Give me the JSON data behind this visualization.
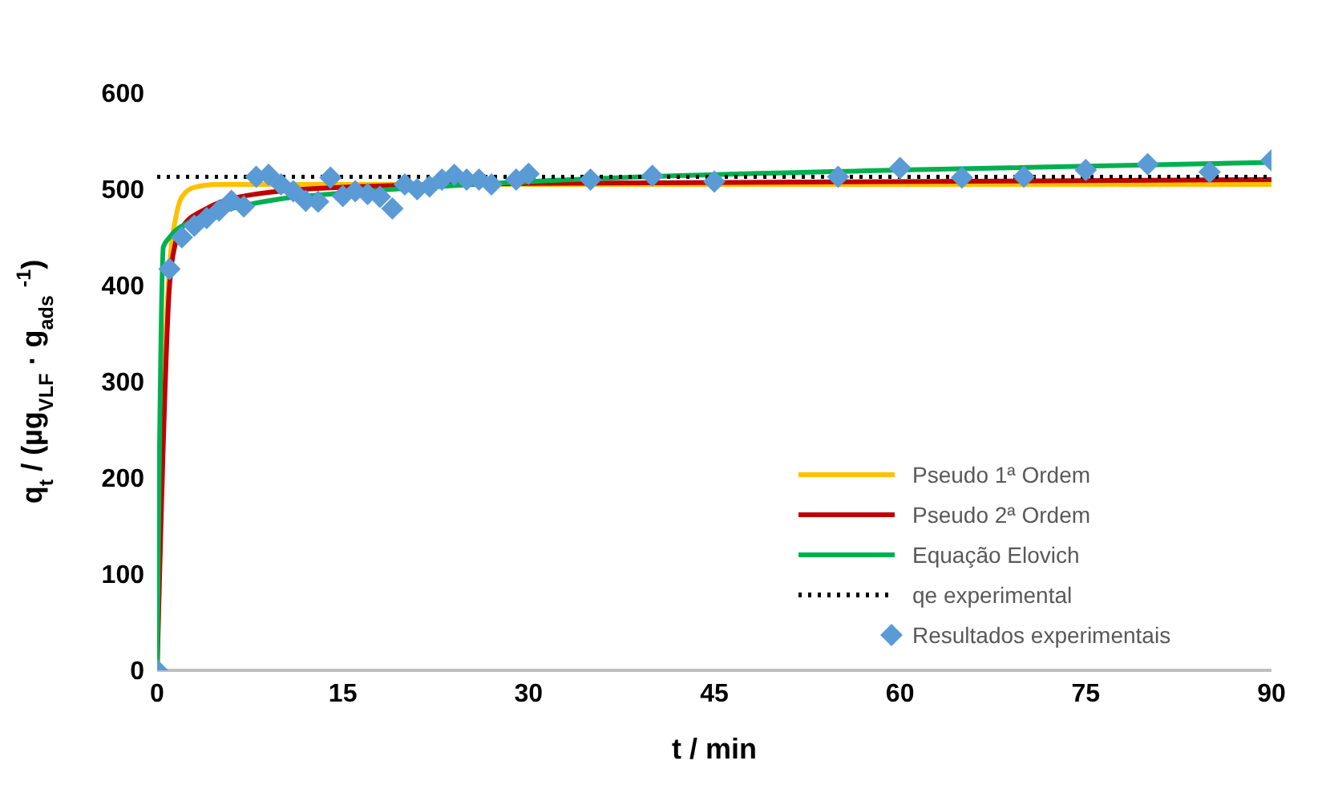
{
  "chart_data": {
    "type": "line",
    "xlabel": "t / min",
    "ylabel": "q$_{t}$ / (µg$_{VLF}$ · g$_{ads}$ $^{-1}$)",
    "xlim": [
      0,
      90
    ],
    "xticks": [
      0,
      15,
      30,
      45,
      60,
      75,
      90
    ],
    "ylim": [
      0,
      600
    ],
    "yticks": [
      0,
      100,
      200,
      300,
      400,
      500,
      600
    ],
    "grid": false,
    "legend": "right",
    "series": [
      {
        "name": "Pseudo 1ª Ordem",
        "color": "#ffc000",
        "line_style": "solid",
        "marker": "none",
        "x": [
          0,
          0.5,
          1,
          1.5,
          2,
          3,
          5,
          90
        ],
        "values": [
          0,
          280,
          420,
          470,
          492,
          502,
          505,
          505
        ]
      },
      {
        "name": "Pseudo 2ª Ordem",
        "color": "#c00000",
        "line_style": "solid",
        "marker": "none",
        "x": [
          0,
          1,
          1.5,
          2,
          4,
          8,
          15,
          30,
          90
        ],
        "values": [
          0,
          400,
          445,
          460,
          480,
          495,
          502,
          506,
          510
        ]
      },
      {
        "name": "Equação Elovich",
        "color": "#00b050",
        "line_style": "solid",
        "marker": "none",
        "x": [
          0,
          0.5,
          1,
          3,
          6,
          10,
          15,
          30,
          60,
          90
        ],
        "values": [
          0,
          440,
          450,
          468,
          480,
          490,
          496,
          508,
          520,
          528
        ]
      },
      {
        "name": "qe experimental",
        "color": "#000000",
        "line_style": "dotted",
        "marker": "none",
        "x": [
          0,
          90
        ],
        "values": [
          513,
          513
        ]
      },
      {
        "name": "Resultados experimentais",
        "type": "scatter",
        "color": "#5b9bd5",
        "marker": "diamond",
        "x": [
          0,
          1,
          2,
          3,
          4,
          5,
          6,
          7,
          8,
          9,
          10,
          11,
          12,
          13,
          14,
          15,
          16,
          17,
          18,
          19,
          20,
          21,
          22,
          23,
          24,
          25,
          26,
          27,
          29,
          30,
          35,
          40,
          45,
          55,
          60,
          65,
          70,
          75,
          80,
          85,
          90
        ],
        "values": [
          0,
          417,
          450,
          462,
          470,
          478,
          488,
          482,
          513,
          515,
          505,
          498,
          488,
          487,
          512,
          493,
          498,
          495,
          492,
          480,
          505,
          500,
          503,
          510,
          515,
          510,
          510,
          505,
          510,
          516,
          510,
          514,
          508,
          513,
          522,
          512,
          513,
          520,
          526,
          518,
          530
        ]
      }
    ]
  }
}
